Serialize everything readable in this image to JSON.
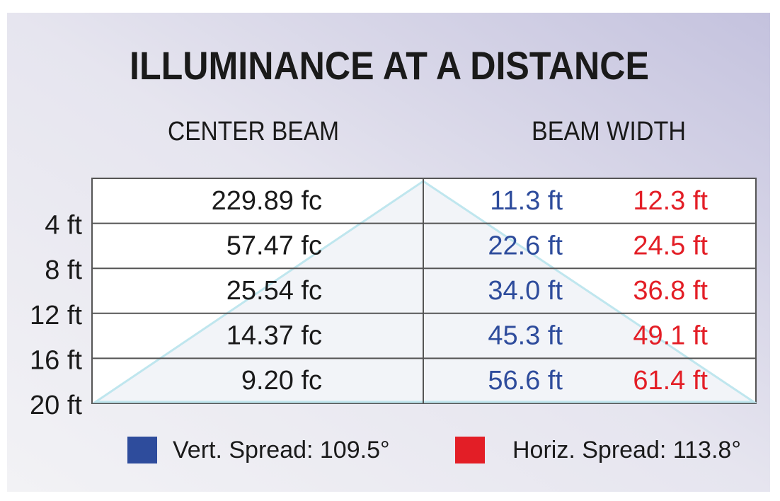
{
  "title": "ILLUMINANCE AT A DISTANCE",
  "table": {
    "headers": [
      "CENTER BEAM",
      "BEAM WIDTH"
    ],
    "distances": [
      "4 ft",
      "8 ft",
      "12 ft",
      "16 ft",
      "20 ft"
    ],
    "rows": [
      [
        "229.89 fc",
        "11.3 ft",
        "12.3 ft"
      ],
      [
        "57.47 fc",
        "22.6 ft",
        "24.5 ft"
      ],
      [
        "25.54 fc",
        "34.0 ft",
        "36.8 ft"
      ],
      [
        "14.37 fc",
        "45.3 ft",
        "49.1 ft"
      ],
      [
        "9.20 fc",
        "56.6 ft",
        "61.4 ft"
      ]
    ]
  },
  "legend": [
    {
      "label": "Vert. Spread: 109.5°",
      "color": "#2e4c9c"
    },
    {
      "label": "Horiz. Spread: 113.8°",
      "color": "#e31e26"
    }
  ]
}
